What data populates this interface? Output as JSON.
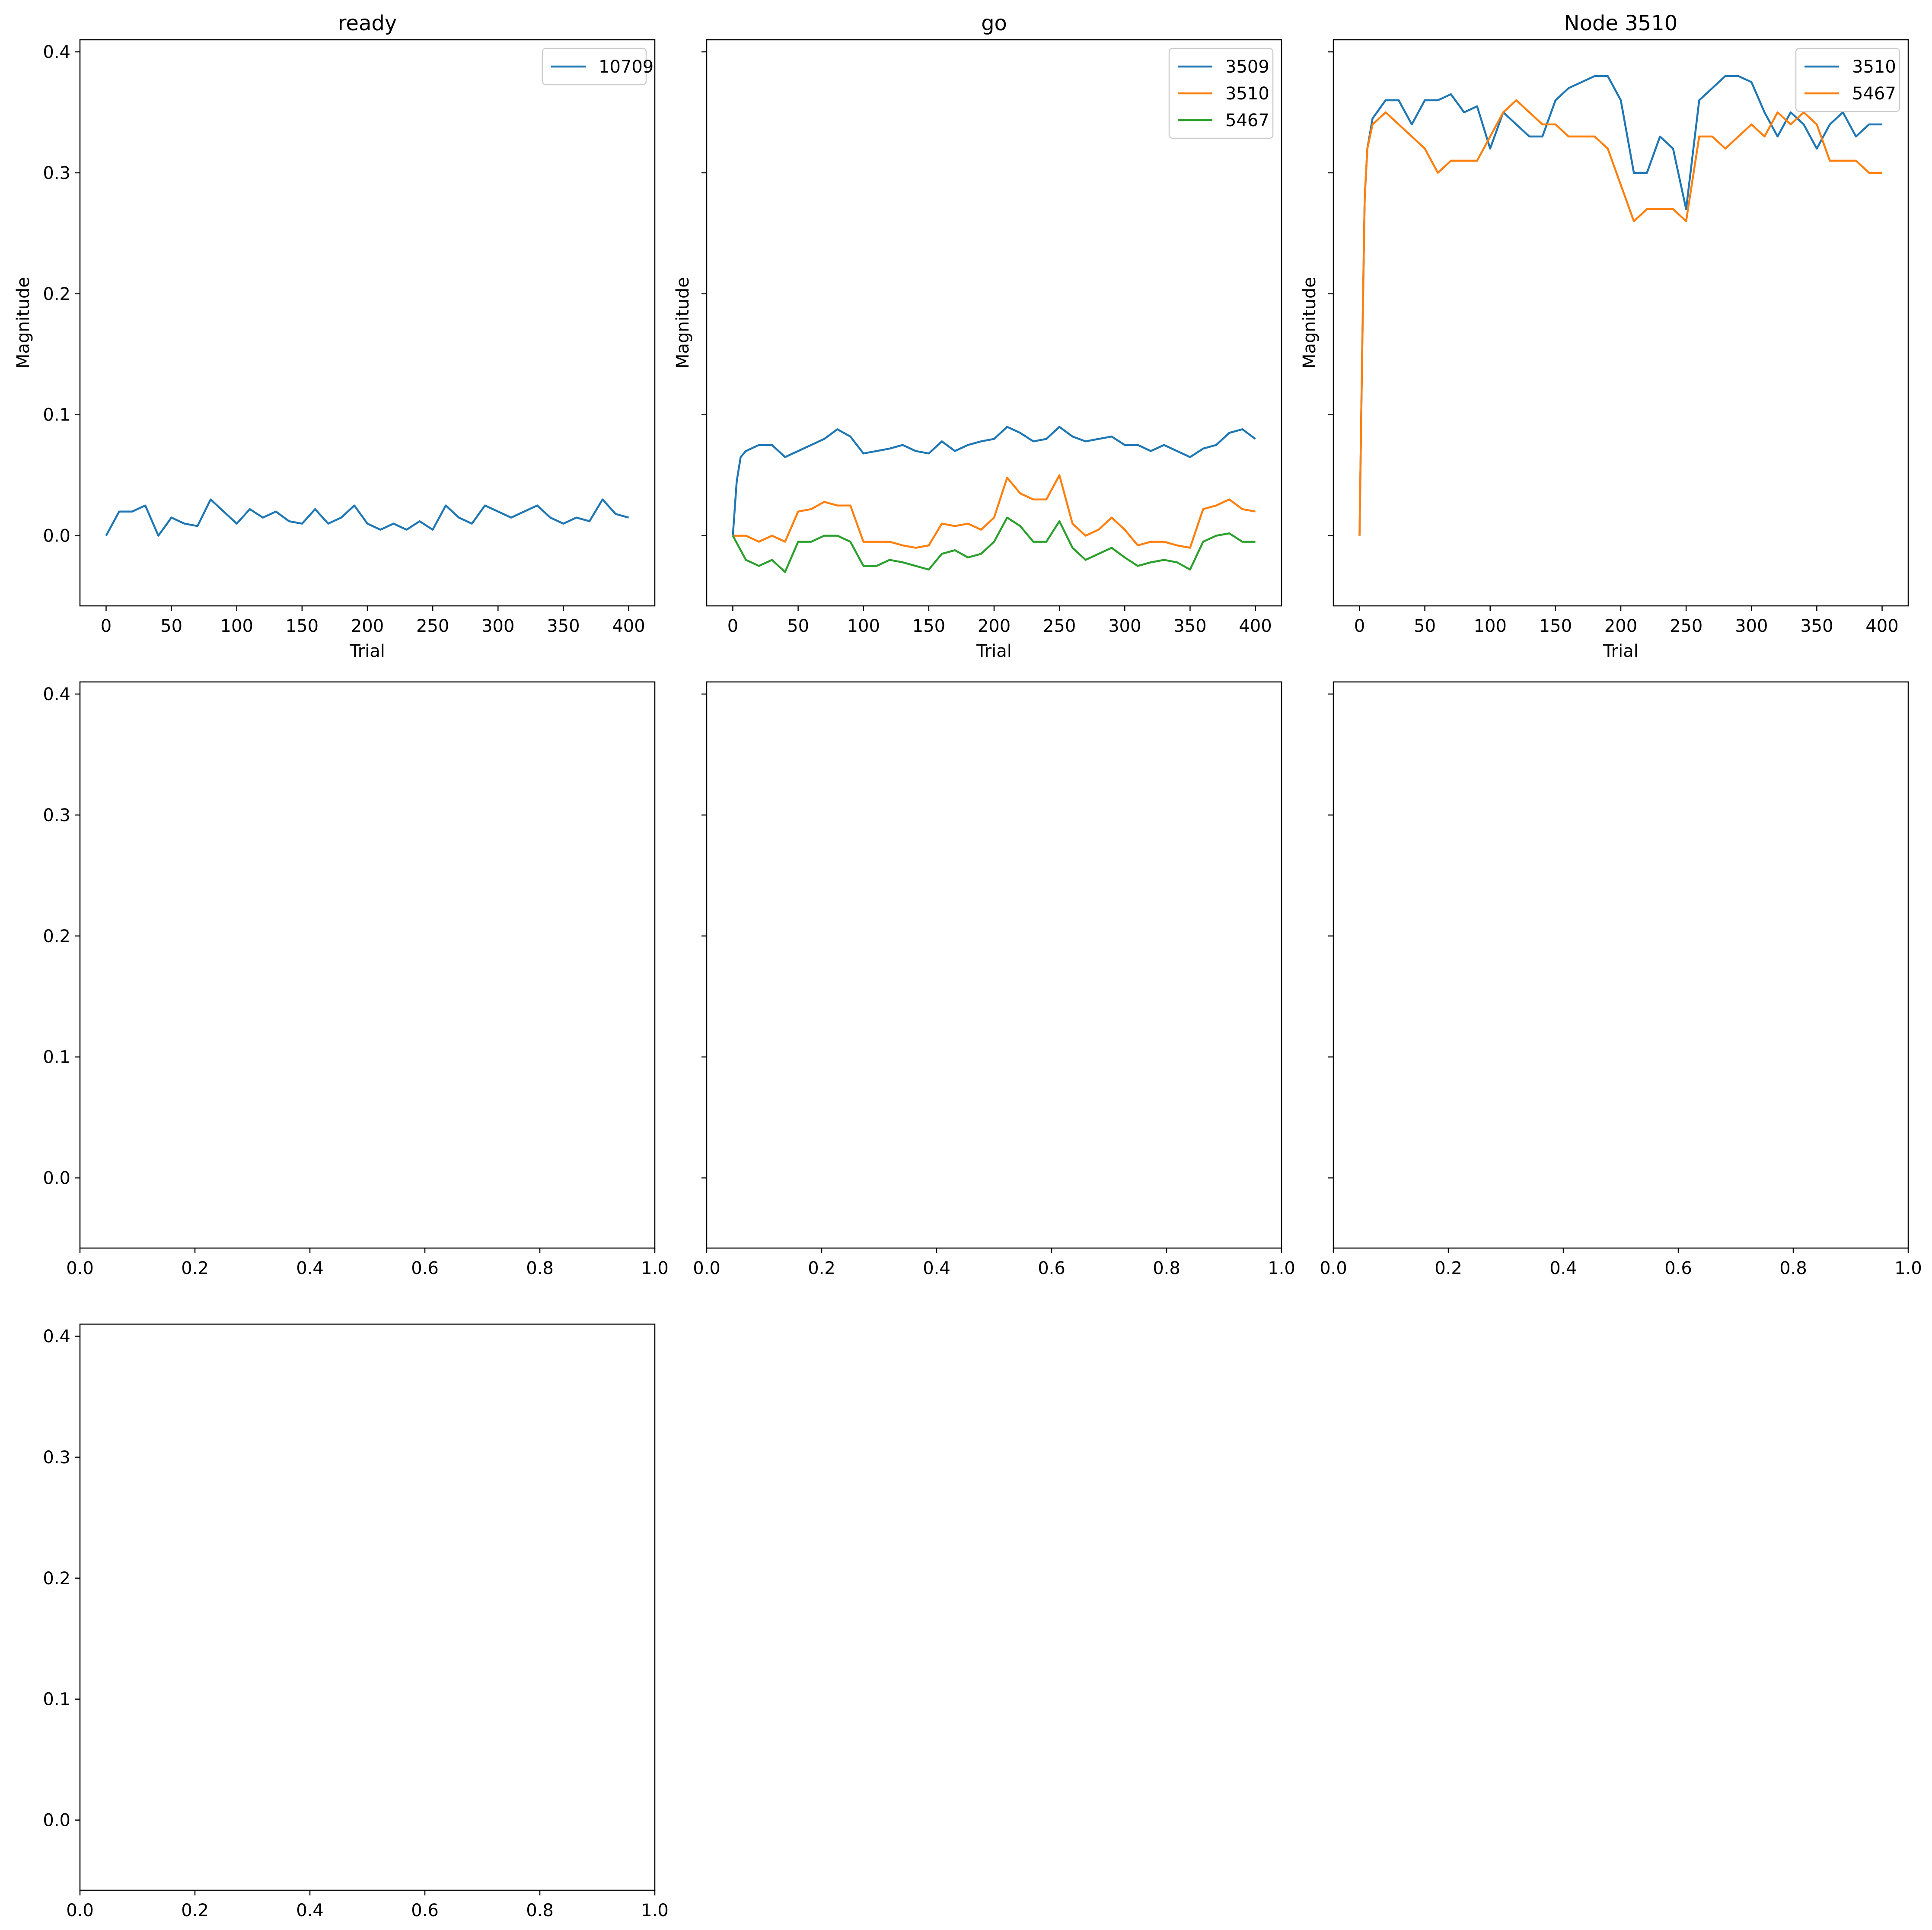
{
  "colors": {
    "series_1": "#1f77b4",
    "series_2": "#ff7f0e",
    "series_3": "#2ca02c"
  },
  "chart_data": [
    {
      "type": "line",
      "panel": "row1-col1",
      "title": "ready",
      "xlabel": "Trial",
      "ylabel": "Magnitude",
      "xlim": [
        -20,
        420
      ],
      "ylim": [
        -0.058,
        0.41
      ],
      "xticks": [
        0,
        50,
        100,
        150,
        200,
        250,
        300,
        350,
        400
      ],
      "yticks": [
        0.0,
        0.1,
        0.2,
        0.3,
        0.4
      ],
      "ytick_labels": [
        "0.0",
        "0.1",
        "0.2",
        "0.3",
        "0.4"
      ],
      "legend": "top-right",
      "series": [
        {
          "name": "10709",
          "color": "#1f77b4",
          "x": [
            0,
            10,
            20,
            30,
            40,
            50,
            60,
            70,
            80,
            90,
            100,
            110,
            120,
            130,
            140,
            150,
            160,
            170,
            180,
            190,
            200,
            210,
            220,
            230,
            240,
            250,
            260,
            270,
            280,
            290,
            300,
            310,
            320,
            330,
            340,
            350,
            360,
            370,
            380,
            390,
            400
          ],
          "y": [
            0.0,
            0.02,
            0.02,
            0.025,
            0.0,
            0.015,
            0.01,
            0.008,
            0.03,
            0.02,
            0.01,
            0.022,
            0.015,
            0.02,
            0.012,
            0.01,
            0.022,
            0.01,
            0.015,
            0.025,
            0.01,
            0.005,
            0.01,
            0.005,
            0.012,
            0.005,
            0.025,
            0.015,
            0.01,
            0.025,
            0.02,
            0.015,
            0.02,
            0.025,
            0.015,
            0.01,
            0.015,
            0.012,
            0.03,
            0.018,
            0.015
          ]
        }
      ]
    },
    {
      "type": "line",
      "panel": "row1-col2",
      "title": "go",
      "xlabel": "Trial",
      "ylabel": "Magnitude",
      "xlim": [
        -20,
        420
      ],
      "ylim": [
        -0.058,
        0.41
      ],
      "xticks": [
        0,
        50,
        100,
        150,
        200,
        250,
        300,
        350,
        400
      ],
      "yticks": [
        0.0,
        0.1,
        0.2,
        0.3,
        0.4
      ],
      "legend": "top-right",
      "series": [
        {
          "name": "3509",
          "color": "#1f77b4",
          "x": [
            0,
            3,
            6,
            10,
            20,
            30,
            40,
            50,
            60,
            70,
            80,
            90,
            100,
            110,
            120,
            130,
            140,
            150,
            160,
            170,
            180,
            190,
            200,
            210,
            220,
            230,
            240,
            250,
            260,
            270,
            280,
            290,
            300,
            310,
            320,
            330,
            340,
            350,
            360,
            370,
            380,
            390,
            400
          ],
          "y": [
            0.0,
            0.045,
            0.065,
            0.07,
            0.075,
            0.075,
            0.065,
            0.07,
            0.075,
            0.08,
            0.088,
            0.082,
            0.068,
            0.07,
            0.072,
            0.075,
            0.07,
            0.068,
            0.078,
            0.07,
            0.075,
            0.078,
            0.08,
            0.09,
            0.085,
            0.078,
            0.08,
            0.09,
            0.082,
            0.078,
            0.08,
            0.082,
            0.075,
            0.075,
            0.07,
            0.075,
            0.07,
            0.065,
            0.072,
            0.075,
            0.085,
            0.088,
            0.08
          ]
        },
        {
          "name": "3510",
          "color": "#ff7f0e",
          "x": [
            0,
            10,
            20,
            30,
            40,
            50,
            60,
            70,
            80,
            90,
            100,
            110,
            120,
            130,
            140,
            150,
            160,
            170,
            180,
            190,
            200,
            210,
            220,
            230,
            240,
            250,
            260,
            270,
            280,
            290,
            300,
            310,
            320,
            330,
            340,
            350,
            360,
            370,
            380,
            390,
            400
          ],
          "y": [
            0.0,
            0.0,
            -0.005,
            0.0,
            -0.005,
            0.02,
            0.022,
            0.028,
            0.025,
            0.025,
            -0.005,
            -0.005,
            -0.005,
            -0.008,
            -0.01,
            -0.008,
            0.01,
            0.008,
            0.01,
            0.005,
            0.015,
            0.048,
            0.035,
            0.03,
            0.03,
            0.05,
            0.01,
            0.0,
            0.005,
            0.015,
            0.005,
            -0.008,
            -0.005,
            -0.005,
            -0.008,
            -0.01,
            0.022,
            0.025,
            0.03,
            0.022,
            0.02
          ]
        },
        {
          "name": "5467",
          "color": "#2ca02c",
          "x": [
            0,
            10,
            20,
            30,
            40,
            50,
            60,
            70,
            80,
            90,
            100,
            110,
            120,
            130,
            140,
            150,
            160,
            170,
            180,
            190,
            200,
            210,
            220,
            230,
            240,
            250,
            260,
            270,
            280,
            290,
            300,
            310,
            320,
            330,
            340,
            350,
            360,
            370,
            380,
            390,
            400
          ],
          "y": [
            0.0,
            -0.02,
            -0.025,
            -0.02,
            -0.03,
            -0.005,
            -0.005,
            0.0,
            0.0,
            -0.005,
            -0.025,
            -0.025,
            -0.02,
            -0.022,
            -0.025,
            -0.028,
            -0.015,
            -0.012,
            -0.018,
            -0.015,
            -0.005,
            0.015,
            0.008,
            -0.005,
            -0.005,
            0.012,
            -0.01,
            -0.02,
            -0.015,
            -0.01,
            -0.018,
            -0.025,
            -0.022,
            -0.02,
            -0.022,
            -0.028,
            -0.005,
            0.0,
            0.002,
            -0.005,
            -0.005
          ]
        }
      ]
    },
    {
      "type": "line",
      "panel": "row1-col3",
      "title": "Node 3510",
      "xlabel": "Trial",
      "ylabel": "Magnitude",
      "xlim": [
        -20,
        420
      ],
      "ylim": [
        -0.058,
        0.41
      ],
      "xticks": [
        0,
        50,
        100,
        150,
        200,
        250,
        300,
        350,
        400
      ],
      "yticks": [
        0.0,
        0.1,
        0.2,
        0.3,
        0.4
      ],
      "legend": "top-right",
      "series": [
        {
          "name": "3510",
          "color": "#1f77b4",
          "x": [
            0,
            2,
            4,
            6,
            10,
            20,
            30,
            40,
            50,
            60,
            70,
            80,
            90,
            100,
            110,
            120,
            130,
            140,
            150,
            160,
            170,
            180,
            190,
            200,
            210,
            220,
            230,
            240,
            250,
            260,
            270,
            280,
            290,
            300,
            310,
            320,
            330,
            340,
            350,
            360,
            370,
            380,
            390,
            400
          ],
          "y": [
            0.0,
            0.15,
            0.28,
            0.32,
            0.345,
            0.36,
            0.36,
            0.34,
            0.36,
            0.36,
            0.365,
            0.35,
            0.355,
            0.32,
            0.35,
            0.34,
            0.33,
            0.33,
            0.36,
            0.37,
            0.375,
            0.38,
            0.38,
            0.36,
            0.3,
            0.3,
            0.33,
            0.32,
            0.27,
            0.36,
            0.37,
            0.38,
            0.38,
            0.375,
            0.35,
            0.33,
            0.35,
            0.34,
            0.32,
            0.34,
            0.35,
            0.33,
            0.34,
            0.34
          ]
        },
        {
          "name": "5467",
          "color": "#ff7f0e",
          "x": [
            0,
            2,
            4,
            6,
            10,
            20,
            30,
            40,
            50,
            60,
            70,
            80,
            90,
            100,
            110,
            120,
            130,
            140,
            150,
            160,
            170,
            180,
            190,
            200,
            210,
            220,
            230,
            240,
            250,
            260,
            270,
            280,
            290,
            300,
            310,
            320,
            330,
            340,
            350,
            360,
            370,
            380,
            390,
            400
          ],
          "y": [
            0.0,
            0.15,
            0.28,
            0.32,
            0.34,
            0.35,
            0.34,
            0.33,
            0.32,
            0.3,
            0.31,
            0.31,
            0.31,
            0.33,
            0.35,
            0.36,
            0.35,
            0.34,
            0.34,
            0.33,
            0.33,
            0.33,
            0.32,
            0.29,
            0.26,
            0.27,
            0.27,
            0.27,
            0.26,
            0.33,
            0.33,
            0.32,
            0.33,
            0.34,
            0.33,
            0.35,
            0.34,
            0.35,
            0.34,
            0.31,
            0.31,
            0.31,
            0.3,
            0.3
          ]
        }
      ]
    },
    {
      "type": "line",
      "panel": "row2-col1",
      "series": [],
      "xlim": [
        0,
        1
      ],
      "ylim": [
        -0.058,
        0.41
      ],
      "xticks": [
        0.0,
        0.2,
        0.4,
        0.6,
        0.8,
        1.0
      ],
      "xtick_labels": [
        "0.0",
        "0.2",
        "0.4",
        "0.6",
        "0.8",
        "1.0"
      ],
      "yticks": [
        0.0,
        0.1,
        0.2,
        0.3,
        0.4
      ]
    },
    {
      "type": "line",
      "panel": "row2-col2",
      "series": [],
      "xlim": [
        0,
        1
      ],
      "ylim": [
        -0.058,
        0.41
      ],
      "xticks": [
        0.0,
        0.2,
        0.4,
        0.6,
        0.8,
        1.0
      ],
      "yticks": [
        0.0,
        0.1,
        0.2,
        0.3,
        0.4
      ]
    },
    {
      "type": "line",
      "panel": "row2-col3",
      "series": [],
      "xlim": [
        0,
        1
      ],
      "ylim": [
        -0.058,
        0.41
      ],
      "xticks": [
        0.0,
        0.2,
        0.4,
        0.6,
        0.8,
        1.0
      ],
      "yticks": [
        0.0,
        0.1,
        0.2,
        0.3,
        0.4
      ]
    },
    {
      "type": "line",
      "panel": "row3-col1",
      "series": [],
      "xlim": [
        0,
        1
      ],
      "ylim": [
        -0.058,
        0.41
      ],
      "xticks": [
        0.0,
        0.2,
        0.4,
        0.6,
        0.8,
        1.0
      ],
      "yticks": [
        0.0,
        0.1,
        0.2,
        0.3,
        0.4
      ]
    }
  ]
}
